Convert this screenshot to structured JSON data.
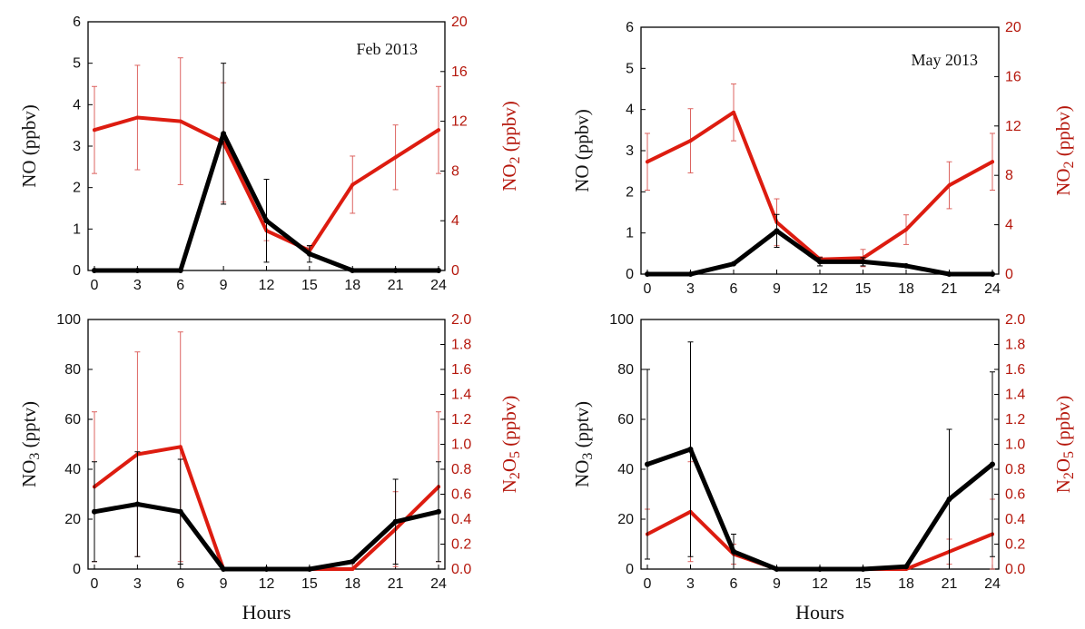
{
  "colors": {
    "left_series": "#000000",
    "right_series": "#dd1c10",
    "right_axis": "#b5170c"
  },
  "chart_data": [
    {
      "type": "line",
      "annotation": "Feb 2013",
      "x": [
        0,
        3,
        6,
        9,
        12,
        15,
        18,
        21,
        24
      ],
      "xticks": [
        "0",
        "3",
        "6",
        "9",
        "12",
        "15",
        "18",
        "21",
        "24"
      ],
      "xlabel": "",
      "ylabel_left": {
        "main": "NO",
        "sub": "",
        "tail": " (ppbv)"
      },
      "ylabel_right": {
        "main": "NO",
        "sub": "2",
        "tail": " (ppbv)"
      },
      "ylim_left": [
        0,
        6
      ],
      "yticks_left": [
        "0",
        "1",
        "2",
        "3",
        "4",
        "5",
        "6"
      ],
      "ylim_right": [
        0,
        20
      ],
      "yticks_right": [
        "0",
        "4",
        "8",
        "12",
        "16",
        "20"
      ],
      "series": [
        {
          "axis": "left",
          "values": [
            0,
            0,
            0,
            3.3,
            1.2,
            0.4,
            0,
            0,
            0
          ],
          "err": [
            0,
            0,
            0,
            1.7,
            1.0,
            0.2,
            0,
            0,
            0
          ]
        },
        {
          "axis": "right",
          "values": [
            11.3,
            12.3,
            12,
            10.3,
            3.2,
            1.6,
            6.9,
            9.1,
            11.3
          ],
          "err": [
            3.5,
            4.2,
            5.1,
            4.8,
            0.8,
            0.3,
            2.3,
            2.6,
            3.5
          ]
        }
      ]
    },
    {
      "type": "line",
      "annotation": "May 2013",
      "x": [
        0,
        3,
        6,
        9,
        12,
        15,
        18,
        21,
        24
      ],
      "xticks": [
        "0",
        "3",
        "6",
        "9",
        "12",
        "15",
        "18",
        "21",
        "24"
      ],
      "xlabel": "",
      "ylabel_left": {
        "main": "NO",
        "sub": "",
        "tail": " (ppbv)"
      },
      "ylabel_right": {
        "main": "NO",
        "sub": "2",
        "tail": " (ppbv)"
      },
      "ylim_left": [
        0,
        6
      ],
      "yticks_left": [
        "0",
        "1",
        "2",
        "3",
        "4",
        "5",
        "6"
      ],
      "ylim_right": [
        0,
        20
      ],
      "yticks_right": [
        "0",
        "4",
        "8",
        "12",
        "16",
        "20"
      ],
      "series": [
        {
          "axis": "left",
          "values": [
            0,
            0,
            0.25,
            1.05,
            0.3,
            0.3,
            0.2,
            0,
            0
          ],
          "err": [
            0,
            0,
            0,
            0.4,
            0.1,
            0.1,
            0,
            0,
            0
          ]
        },
        {
          "axis": "right",
          "values": [
            9.1,
            10.8,
            13.1,
            4.2,
            1.2,
            1.3,
            3.6,
            7.2,
            9.1
          ],
          "err": [
            2.3,
            2.6,
            2.3,
            1.9,
            0.2,
            0.7,
            1.2,
            1.9,
            2.3
          ]
        }
      ]
    },
    {
      "type": "line",
      "annotation": "",
      "x": [
        0,
        3,
        6,
        9,
        12,
        15,
        18,
        21,
        24
      ],
      "xticks": [
        "0",
        "3",
        "6",
        "9",
        "12",
        "15",
        "18",
        "21",
        "24"
      ],
      "xlabel": "Hours",
      "ylabel_left": {
        "main": "NO",
        "sub": "3",
        "tail": " (pptv)"
      },
      "ylabel_right": {
        "main": "N",
        "sub": "2",
        "tail": "O",
        "sub2": "5",
        "tail2": " (ppbv)"
      },
      "ylim_left": [
        0,
        100
      ],
      "yticks_left": [
        "0",
        "20",
        "40",
        "60",
        "80",
        "100"
      ],
      "ylim_right": [
        0,
        2
      ],
      "yticks_right": [
        "0.0",
        "0.2",
        "0.4",
        "0.6",
        "0.8",
        "1.0",
        "1.2",
        "1.4",
        "1.6",
        "1.8",
        "2.0"
      ],
      "series": [
        {
          "axis": "left",
          "values": [
            23,
            26,
            23,
            0,
            0,
            0,
            3,
            19,
            23
          ],
          "err": [
            20,
            21,
            21,
            0,
            0,
            0,
            0,
            17,
            20
          ]
        },
        {
          "axis": "right",
          "values": [
            0.66,
            0.92,
            0.98,
            0,
            0,
            0,
            0,
            0.32,
            0.66
          ],
          "err": [
            0.6,
            0.82,
            0.92,
            0,
            0,
            0,
            0.06,
            0.3,
            0.6
          ]
        }
      ]
    },
    {
      "type": "line",
      "annotation": "",
      "x": [
        0,
        3,
        6,
        9,
        12,
        15,
        18,
        21,
        24
      ],
      "xticks": [
        "0",
        "3",
        "6",
        "9",
        "12",
        "15",
        "18",
        "21",
        "24"
      ],
      "xlabel": "Hours",
      "ylabel_left": {
        "main": "NO",
        "sub": "3",
        "tail": " (pptv)"
      },
      "ylabel_right": {
        "main": "N",
        "sub": "2",
        "tail": "O",
        "sub2": "5",
        "tail2": " (ppbv)"
      },
      "ylim_left": [
        0,
        100
      ],
      "yticks_left": [
        "0",
        "20",
        "40",
        "60",
        "80",
        "100"
      ],
      "ylim_right": [
        0,
        2
      ],
      "yticks_right": [
        "0.0",
        "0.2",
        "0.4",
        "0.6",
        "0.8",
        "1.0",
        "1.2",
        "1.4",
        "1.6",
        "1.8",
        "2.0"
      ],
      "series": [
        {
          "axis": "left",
          "values": [
            42,
            48,
            7,
            0,
            0,
            0,
            1,
            28,
            42
          ],
          "err": [
            38,
            43,
            7,
            0,
            0,
            0,
            0,
            28,
            37
          ]
        },
        {
          "axis": "right",
          "values": [
            0.28,
            0.46,
            0.12,
            0,
            0,
            0,
            0,
            0.14,
            0.28
          ],
          "err": [
            0.2,
            0.4,
            0.08,
            0,
            0,
            0,
            0,
            0.1,
            0.28
          ]
        }
      ]
    }
  ]
}
